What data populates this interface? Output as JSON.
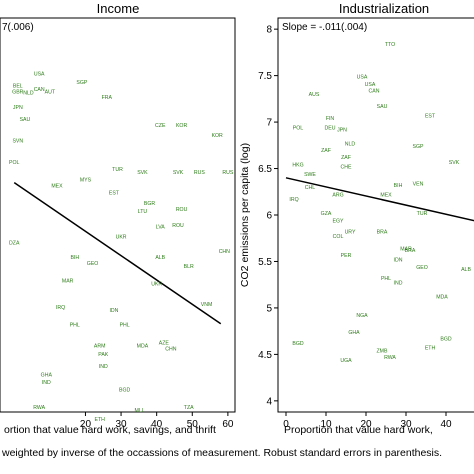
{
  "footnote": "weighted by inverse of the occassions of measurement. Robust standard errors in parenthesis.",
  "chart_data": [
    {
      "type": "scatter",
      "title": "Income",
      "slope_label": "7(.006)",
      "xlabel": "ortion that value hard work, savings, and thrift",
      "ylabel": "",
      "xlim": [
        -4,
        62
      ],
      "ylim": [
        5.5,
        12.2
      ],
      "x_ticks": [
        20,
        30,
        40,
        50,
        60
      ],
      "fit_line": [
        [
          0,
          9.4
        ],
        [
          58,
          7.0
        ]
      ],
      "points": [
        {
          "label": "USA",
          "x": 7,
          "y": 11.22
        },
        {
          "label": "SGP",
          "x": 19,
          "y": 11.08
        },
        {
          "label": "BEL",
          "x": 1,
          "y": 11.02
        },
        {
          "label": "GBR",
          "x": 1,
          "y": 10.92
        },
        {
          "label": "CAN",
          "x": 7,
          "y": 10.96
        },
        {
          "label": "NLD",
          "x": 4,
          "y": 10.9
        },
        {
          "label": "AUT",
          "x": 10,
          "y": 10.92
        },
        {
          "label": "FRA",
          "x": 26,
          "y": 10.82
        },
        {
          "label": "JPN",
          "x": 1,
          "y": 10.65
        },
        {
          "label": "SVN",
          "x": 1,
          "y": 10.08
        },
        {
          "label": "SAU",
          "x": 3,
          "y": 10.45
        },
        {
          "label": "CZE",
          "x": 41,
          "y": 10.35
        },
        {
          "label": "KOR",
          "x": 47,
          "y": 10.35
        },
        {
          "label": "KOR",
          "x": 57,
          "y": 10.18
        },
        {
          "label": "POL",
          "x": 0,
          "y": 9.72
        },
        {
          "label": "MYS",
          "x": 20,
          "y": 9.42
        },
        {
          "label": "TUR",
          "x": 29,
          "y": 9.6
        },
        {
          "label": "SVK",
          "x": 36,
          "y": 9.55
        },
        {
          "label": "SVK",
          "x": 46,
          "y": 9.55
        },
        {
          "label": "RUS",
          "x": 52,
          "y": 9.55
        },
        {
          "label": "RUS",
          "x": 60,
          "y": 9.55
        },
        {
          "label": "MEX",
          "x": 12,
          "y": 9.32
        },
        {
          "label": "EST",
          "x": 28,
          "y": 9.2
        },
        {
          "label": "BGR",
          "x": 38,
          "y": 9.02
        },
        {
          "label": "ROU",
          "x": 47,
          "y": 8.92
        },
        {
          "label": "LTU",
          "x": 36,
          "y": 8.88
        },
        {
          "label": "LVA",
          "x": 41,
          "y": 8.62
        },
        {
          "label": "ROU",
          "x": 46,
          "y": 8.65
        },
        {
          "label": "UKR",
          "x": 30,
          "y": 8.45
        },
        {
          "label": "ALB",
          "x": 41,
          "y": 8.1
        },
        {
          "label": "BLR",
          "x": 49,
          "y": 7.95
        },
        {
          "label": "BIH",
          "x": 17,
          "y": 8.1
        },
        {
          "label": "GEO",
          "x": 22,
          "y": 8.0
        },
        {
          "label": "MAR",
          "x": 15,
          "y": 7.7
        },
        {
          "label": "DZA",
          "x": 0,
          "y": 8.35
        },
        {
          "label": "IRQ",
          "x": 13,
          "y": 7.25
        },
        {
          "label": "IDN",
          "x": 28,
          "y": 7.2
        },
        {
          "label": "UKR",
          "x": 40,
          "y": 7.65
        },
        {
          "label": "PHL",
          "x": 17,
          "y": 6.95
        },
        {
          "label": "PHL",
          "x": 31,
          "y": 6.95
        },
        {
          "label": "ARM",
          "x": 24,
          "y": 6.6
        },
        {
          "label": "MDA",
          "x": 36,
          "y": 6.6
        },
        {
          "label": "AZE",
          "x": 42,
          "y": 6.65
        },
        {
          "label": "PAK",
          "x": 25,
          "y": 6.45
        },
        {
          "label": "IND",
          "x": 25,
          "y": 6.25
        },
        {
          "label": "CHN",
          "x": 44,
          "y": 6.55
        },
        {
          "label": "CHN",
          "x": 59,
          "y": 8.2
        },
        {
          "label": "VNM",
          "x": 54,
          "y": 7.3
        },
        {
          "label": "GHA",
          "x": 9,
          "y": 6.1
        },
        {
          "label": "IND",
          "x": 9,
          "y": 5.98
        },
        {
          "label": "RWA",
          "x": 7,
          "y": 5.55
        },
        {
          "label": "BGD",
          "x": 31,
          "y": 5.85
        },
        {
          "label": "TZA",
          "x": 49,
          "y": 5.55
        },
        {
          "label": "ETH",
          "x": 24,
          "y": 5.35
        },
        {
          "label": "MLI",
          "x": 35,
          "y": 5.5
        }
      ]
    },
    {
      "type": "scatter",
      "title": "Industrialization",
      "slope_label": "Slope = -.011(.004)",
      "xlabel": "Proportion that value hard work, ",
      "ylabel": "CO2 emissions per capita (log)",
      "xlim": [
        -2,
        48
      ],
      "ylim": [
        3.88,
        8.12
      ],
      "x_ticks": [
        0,
        10,
        20,
        30,
        40
      ],
      "y_ticks": [
        4,
        4.5,
        5,
        5.5,
        6,
        6.5,
        7,
        7.5,
        8
      ],
      "fit_line": [
        [
          0,
          6.4
        ],
        [
          48,
          5.93
        ]
      ],
      "points": [
        {
          "label": "TTO",
          "x": 26,
          "y": 7.82
        },
        {
          "label": "USA",
          "x": 19,
          "y": 7.47
        },
        {
          "label": "USA",
          "x": 21,
          "y": 7.39
        },
        {
          "label": "CAN",
          "x": 22,
          "y": 7.32
        },
        {
          "label": "AUS",
          "x": 7,
          "y": 7.28
        },
        {
          "label": "SAU",
          "x": 24,
          "y": 7.15
        },
        {
          "label": "EST",
          "x": 36,
          "y": 7.05
        },
        {
          "label": "FIN",
          "x": 11,
          "y": 7.02
        },
        {
          "label": "POL",
          "x": 3,
          "y": 6.92
        },
        {
          "label": "DEU",
          "x": 11,
          "y": 6.92
        },
        {
          "label": "JPN",
          "x": 14,
          "y": 6.9
        },
        {
          "label": "NLD",
          "x": 16,
          "y": 6.75
        },
        {
          "label": "SGP",
          "x": 33,
          "y": 6.72
        },
        {
          "label": "ZAF",
          "x": 10,
          "y": 6.68
        },
        {
          "label": "ZAF",
          "x": 15,
          "y": 6.6
        },
        {
          "label": "SVK",
          "x": 42,
          "y": 6.55
        },
        {
          "label": "HKG",
          "x": 3,
          "y": 6.52
        },
        {
          "label": "CHE",
          "x": 15,
          "y": 6.5
        },
        {
          "label": "SWE",
          "x": 6,
          "y": 6.42
        },
        {
          "label": "BIH",
          "x": 28,
          "y": 6.3
        },
        {
          "label": "VEN",
          "x": 33,
          "y": 6.32
        },
        {
          "label": "CHL",
          "x": 6,
          "y": 6.28
        },
        {
          "label": "MEX",
          "x": 25,
          "y": 6.2
        },
        {
          "label": "TUR",
          "x": 34,
          "y": 6.0
        },
        {
          "label": "IRQ",
          "x": 2,
          "y": 6.15
        },
        {
          "label": "ARG",
          "x": 13,
          "y": 6.2
        },
        {
          "label": "GZA",
          "x": 10,
          "y": 6.0
        },
        {
          "label": "EGY",
          "x": 13,
          "y": 5.92
        },
        {
          "label": "COL",
          "x": 13,
          "y": 5.75
        },
        {
          "label": "URY",
          "x": 16,
          "y": 5.8
        },
        {
          "label": "BRA",
          "x": 24,
          "y": 5.8
        },
        {
          "label": "BRA",
          "x": 31,
          "y": 5.6
        },
        {
          "label": "PER",
          "x": 15,
          "y": 5.55
        },
        {
          "label": "IDN",
          "x": 28,
          "y": 5.5
        },
        {
          "label": "MAR",
          "x": 30,
          "y": 5.62
        },
        {
          "label": "GEO",
          "x": 34,
          "y": 5.42
        },
        {
          "label": "PHL",
          "x": 25,
          "y": 5.3
        },
        {
          "label": "ALB",
          "x": 45,
          "y": 5.4
        },
        {
          "label": "MDA",
          "x": 39,
          "y": 5.1
        },
        {
          "label": "IND",
          "x": 28,
          "y": 5.25
        },
        {
          "label": "NGA",
          "x": 19,
          "y": 4.9
        },
        {
          "label": "GHA",
          "x": 17,
          "y": 4.72
        },
        {
          "label": "BGD",
          "x": 3,
          "y": 4.6
        },
        {
          "label": "ZMB",
          "x": 24,
          "y": 4.52
        },
        {
          "label": "BGD",
          "x": 40,
          "y": 4.65
        },
        {
          "label": "UGA",
          "x": 15,
          "y": 4.42
        },
        {
          "label": "RWA",
          "x": 26,
          "y": 4.45
        },
        {
          "label": "ETH",
          "x": 36,
          "y": 4.55
        }
      ]
    }
  ]
}
